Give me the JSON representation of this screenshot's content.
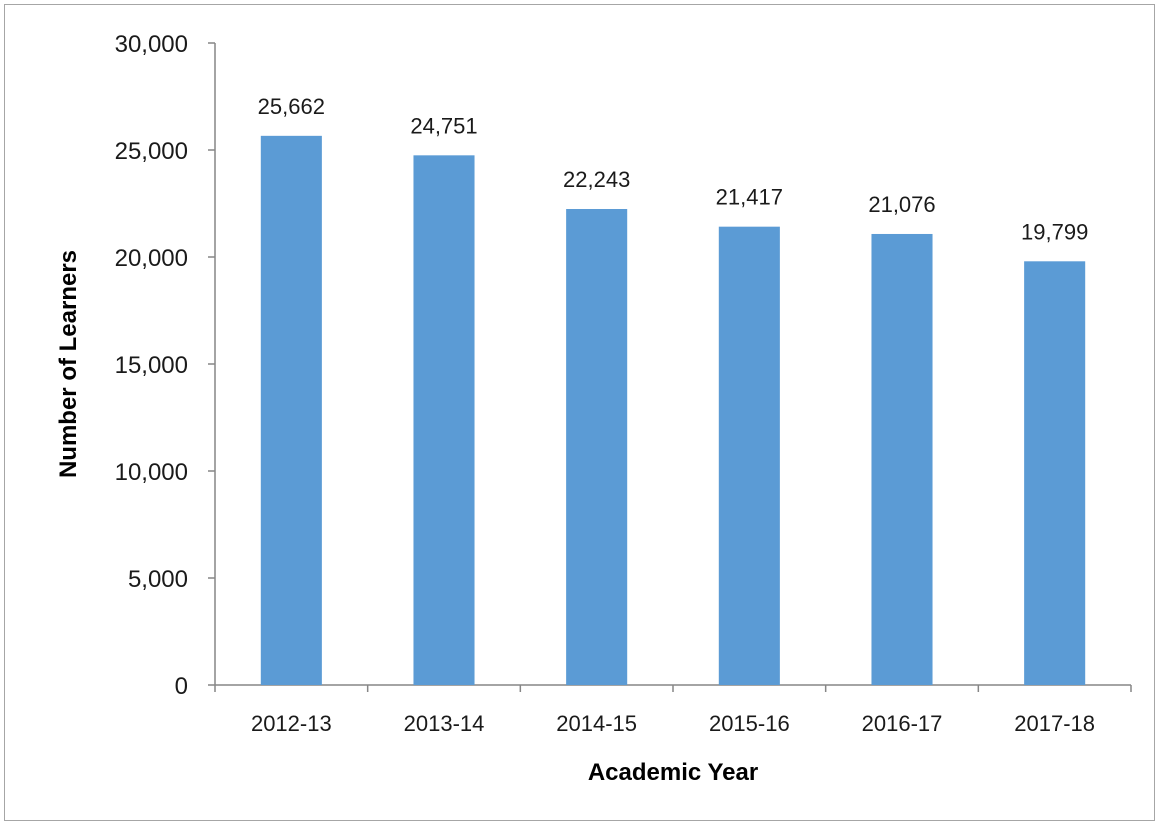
{
  "chart_data": {
    "type": "bar",
    "title": "",
    "xlabel": "Academic Year",
    "ylabel": "Number of Learners",
    "categories": [
      "2012-13",
      "2013-14",
      "2014-15",
      "2015-16",
      "2016-17",
      "2017-18"
    ],
    "values": [
      25662,
      24751,
      22243,
      21417,
      21076,
      19799
    ],
    "data_labels": [
      "25,662",
      "24,751",
      "22,243",
      "21,417",
      "21,076",
      "19,799"
    ],
    "ylim": [
      0,
      30000
    ],
    "y_ticks": [
      0,
      5000,
      10000,
      15000,
      20000,
      25000,
      30000
    ],
    "y_tick_labels": [
      "0",
      "5,000",
      "10,000",
      "15,000",
      "20,000",
      "25,000",
      "30,000"
    ],
    "grid": false,
    "legend": "none",
    "bar_color": "#5b9bd5",
    "axis_color": "#868686"
  }
}
